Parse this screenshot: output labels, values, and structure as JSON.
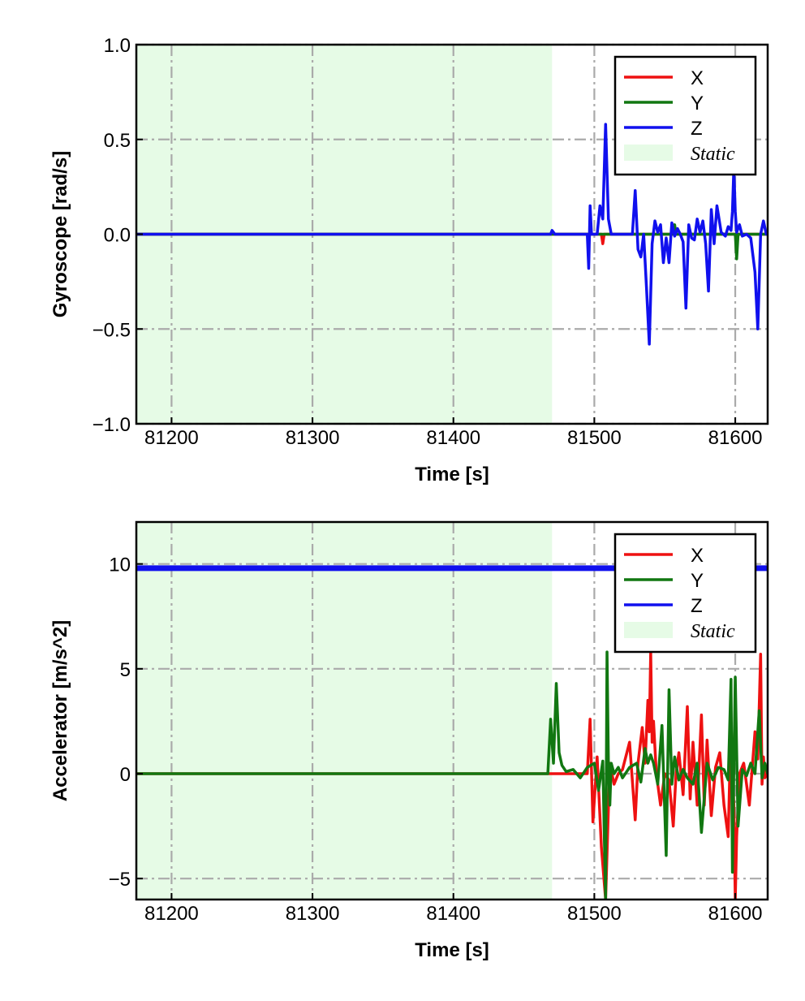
{
  "chart_data": [
    {
      "type": "line",
      "title": "",
      "xlabel": "Time [s]",
      "ylabel": "Gyroscope [rad/s]",
      "xlim": [
        81175,
        81623
      ],
      "ylim": [
        -1.0,
        1.0
      ],
      "xticks": [
        81200,
        81300,
        81400,
        81500,
        81600
      ],
      "yticks": [
        -1.0,
        -0.5,
        0.0,
        0.5,
        1.0
      ],
      "ytick_labels": [
        "−1.0",
        "−0.5",
        "0.0",
        "0.5",
        "1.0"
      ],
      "grid": true,
      "legend_position": "top-right",
      "static_region": [
        81175,
        81470
      ],
      "legend": [
        {
          "label": "X",
          "color": "#ee1111"
        },
        {
          "label": "Y",
          "color": "#117711"
        },
        {
          "label": "Z",
          "color": "#1010ee"
        },
        {
          "label": "Static",
          "color": "#e6fbe6"
        }
      ],
      "series": [
        {
          "name": "X",
          "color": "#ee1111",
          "x": [
            81175,
            81470,
            81505,
            81506,
            81507,
            81508,
            81540,
            81623
          ],
          "y": [
            0,
            0,
            0,
            -0.05,
            0,
            0,
            0,
            0
          ]
        },
        {
          "name": "Y",
          "color": "#117711",
          "x": [
            81175,
            81540,
            81556,
            81557,
            81558,
            81600,
            81601,
            81602,
            81623
          ],
          "y": [
            0,
            0,
            0,
            0.05,
            0,
            0,
            -0.13,
            0,
            0
          ]
        },
        {
          "name": "Z",
          "color": "#1010ee",
          "x": [
            81175,
            81469,
            81470,
            81472,
            81495,
            81496,
            81497,
            81498,
            81499,
            81502,
            81504,
            81506,
            81508,
            81510,
            81512,
            81515,
            81520,
            81527,
            81529,
            81531,
            81533,
            81535,
            81537,
            81539,
            81541,
            81543,
            81545,
            81547,
            81549,
            81551,
            81553,
            81555,
            81557,
            81559,
            81561,
            81563,
            81565,
            81567,
            81569,
            81571,
            81573,
            81575,
            81577,
            81579,
            81581,
            81583,
            81585,
            81587,
            81590,
            81593,
            81595,
            81597,
            81598,
            81599,
            81600,
            81601,
            81603,
            81605,
            81608,
            81611,
            81614,
            81616,
            81618,
            81620,
            81622,
            81623
          ],
          "y": [
            0,
            0,
            0.02,
            0,
            0,
            -0.18,
            0.15,
            0,
            0,
            0,
            0.15,
            0.08,
            0.58,
            0.08,
            0,
            0,
            0,
            0,
            0.23,
            -0.08,
            -0.12,
            0,
            -0.28,
            -0.58,
            -0.05,
            0.07,
            0.01,
            0.05,
            -0.15,
            -0.02,
            -0.15,
            0.06,
            -0.01,
            0.03,
            0,
            -0.04,
            -0.39,
            0.05,
            -0.02,
            -0.03,
            0.08,
            0.01,
            0.07,
            -0.05,
            -0.3,
            0.13,
            -0.05,
            0.15,
            0.01,
            -0.01,
            0.04,
            0.02,
            0.12,
            0.35,
            0.12,
            0.01,
            0.05,
            -0.01,
            0,
            -0.02,
            -0.2,
            -0.5,
            0,
            0.07,
            0,
            0
          ]
        }
      ]
    },
    {
      "type": "line",
      "title": "",
      "xlabel": "Time [s]",
      "ylabel": "Accelerator [m/s^2]",
      "xlim": [
        81175,
        81623
      ],
      "ylim": [
        -6.0,
        12.0
      ],
      "xticks": [
        81200,
        81300,
        81400,
        81500,
        81600
      ],
      "yticks": [
        -5,
        0,
        5,
        10
      ],
      "ytick_labels": [
        "−5",
        "0",
        "5",
        "10"
      ],
      "grid": true,
      "legend_position": "top-right",
      "static_region": [
        81175,
        81470
      ],
      "legend": [
        {
          "label": "X",
          "color": "#ee1111"
        },
        {
          "label": "Y",
          "color": "#117711"
        },
        {
          "label": "Z",
          "color": "#1010ee"
        },
        {
          "label": "Static",
          "color": "#e6fbe6"
        }
      ],
      "series": [
        {
          "name": "Z",
          "color": "#1010ee",
          "x": [
            81175,
            81623
          ],
          "y": [
            9.8,
            9.8
          ]
        },
        {
          "name": "X",
          "color": "#ee1111",
          "x": [
            81175,
            81470,
            81490,
            81495,
            81497,
            81499,
            81502,
            81505,
            81508,
            81511,
            81514,
            81517,
            81520,
            81525,
            81529,
            81531,
            81534,
            81536,
            81538,
            81539,
            81540,
            81541,
            81542,
            81544,
            81547,
            81550,
            81553,
            81556,
            81558,
            81560,
            81563,
            81566,
            81568,
            81570,
            81573,
            81576,
            81578,
            81580,
            81583,
            81586,
            81589,
            81592,
            81595,
            81597,
            81599,
            81600,
            81601,
            81603,
            81606,
            81610,
            81614,
            81616,
            81618,
            81619,
            81620,
            81621,
            81623
          ],
          "y": [
            0,
            0,
            0,
            0,
            2.6,
            -2.3,
            0.8,
            -3.5,
            -6.0,
            0.5,
            -0.5,
            0,
            0.2,
            1.5,
            -2.2,
            0.5,
            2.2,
            0.5,
            3.5,
            2.0,
            5.8,
            1.5,
            2.5,
            0,
            -1.5,
            0,
            -0.3,
            -2.5,
            0,
            1.0,
            -1.0,
            3.2,
            -1.2,
            1.5,
            -1.5,
            2.8,
            -1.5,
            1.6,
            -2.0,
            0.3,
            1.0,
            -1.5,
            -3.0,
            2.5,
            -1.5,
            -6.0,
            -3.0,
            0,
            0.5,
            -1.5,
            2.0,
            0.7,
            5.7,
            -0.5,
            0.8,
            -0.2,
            0
          ]
        },
        {
          "name": "Y",
          "color": "#117711",
          "x": [
            81175,
            81467,
            81469,
            81471,
            81473,
            81475,
            81477,
            81480,
            81485,
            81490,
            81495,
            81500,
            81503,
            81506,
            81508,
            81509,
            81510,
            81511,
            81512,
            81514,
            81517,
            81520,
            81525,
            81530,
            81533,
            81536,
            81538,
            81540,
            81542,
            81545,
            81548,
            81551,
            81553,
            81555,
            81557,
            81560,
            81563,
            81566,
            81570,
            81573,
            81576,
            81580,
            81584,
            81588,
            81592,
            81595,
            81597,
            81598,
            81599,
            81600,
            81602,
            81605,
            81608,
            81611,
            81614,
            81617,
            81619,
            81621,
            81623
          ],
          "y": [
            0,
            0,
            2.6,
            0.5,
            4.3,
            1.0,
            0.4,
            0.1,
            0.2,
            -0.2,
            0.3,
            0.5,
            -0.8,
            0.6,
            -6.0,
            5.8,
            0.5,
            -1.5,
            0.5,
            0,
            0.3,
            -0.2,
            0.3,
            0.5,
            -0.4,
            1.2,
            0.5,
            0.9,
            0.5,
            -0.5,
            2.3,
            -3.9,
            4.0,
            -0.5,
            0.8,
            -0.3,
            0.2,
            -0.2,
            -0.5,
            0.5,
            -2.8,
            0.5,
            -0.3,
            0.3,
            0.2,
            -0.3,
            4.5,
            -4.7,
            0.3,
            4.6,
            -2.5,
            0.2,
            -0.1,
            0.5,
            0,
            3.0,
            -0.2,
            0.5,
            0
          ]
        }
      ]
    }
  ]
}
